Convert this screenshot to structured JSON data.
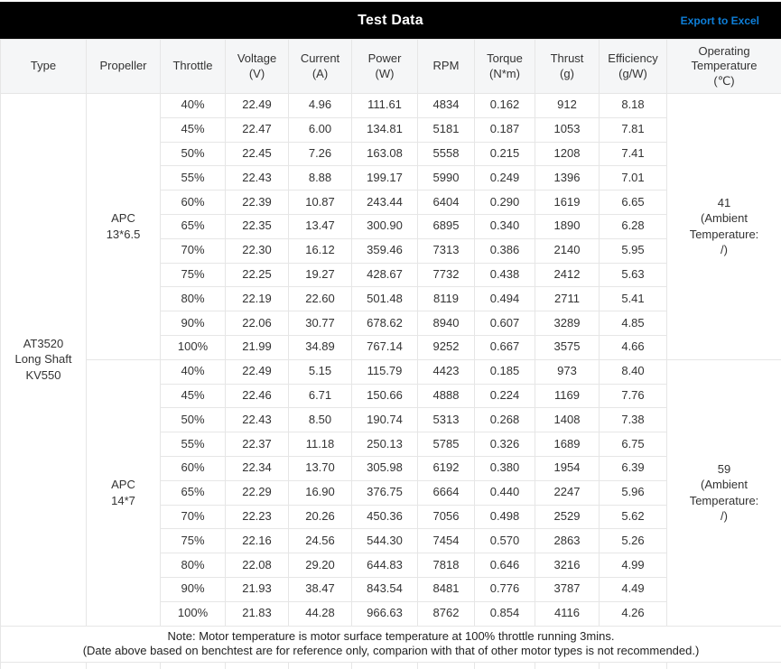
{
  "header": {
    "title": "Test Data",
    "export_label": "Export to Excel"
  },
  "columns": [
    {
      "key": "type",
      "label": "Type",
      "unit": ""
    },
    {
      "key": "propeller",
      "label": "Propeller",
      "unit": ""
    },
    {
      "key": "throttle",
      "label": "Throttle",
      "unit": ""
    },
    {
      "key": "voltage",
      "label": "Voltage",
      "unit": "(V)"
    },
    {
      "key": "current",
      "label": "Current",
      "unit": "(A)"
    },
    {
      "key": "power",
      "label": "Power",
      "unit": "(W)"
    },
    {
      "key": "rpm",
      "label": "RPM",
      "unit": ""
    },
    {
      "key": "torque",
      "label": "Torque",
      "unit": "(N*m)"
    },
    {
      "key": "thrust",
      "label": "Thrust",
      "unit": "(g)"
    },
    {
      "key": "efficiency",
      "label": "Efficiency",
      "unit": "(g/W)"
    },
    {
      "key": "operating-temperature",
      "label": "Operating Temperature",
      "unit": "(℃)"
    }
  ],
  "table": {
    "type_lines": [
      "AT3520",
      "Long Shaft",
      "KV550"
    ],
    "groups": [
      {
        "propeller_lines": [
          "APC",
          "13*6.5"
        ],
        "temperature_lines": [
          "41",
          "(Ambient",
          "Temperature:",
          "/)"
        ],
        "rows": [
          [
            "40%",
            "22.49",
            "4.96",
            "111.61",
            "4834",
            "0.162",
            "912",
            "8.18"
          ],
          [
            "45%",
            "22.47",
            "6.00",
            "134.81",
            "5181",
            "0.187",
            "1053",
            "7.81"
          ],
          [
            "50%",
            "22.45",
            "7.26",
            "163.08",
            "5558",
            "0.215",
            "1208",
            "7.41"
          ],
          [
            "55%",
            "22.43",
            "8.88",
            "199.17",
            "5990",
            "0.249",
            "1396",
            "7.01"
          ],
          [
            "60%",
            "22.39",
            "10.87",
            "243.44",
            "6404",
            "0.290",
            "1619",
            "6.65"
          ],
          [
            "65%",
            "22.35",
            "13.47",
            "300.90",
            "6895",
            "0.340",
            "1890",
            "6.28"
          ],
          [
            "70%",
            "22.30",
            "16.12",
            "359.46",
            "7313",
            "0.386",
            "2140",
            "5.95"
          ],
          [
            "75%",
            "22.25",
            "19.27",
            "428.67",
            "7732",
            "0.438",
            "2412",
            "5.63"
          ],
          [
            "80%",
            "22.19",
            "22.60",
            "501.48",
            "8119",
            "0.494",
            "2711",
            "5.41"
          ],
          [
            "90%",
            "22.06",
            "30.77",
            "678.62",
            "8940",
            "0.607",
            "3289",
            "4.85"
          ],
          [
            "100%",
            "21.99",
            "34.89",
            "767.14",
            "9252",
            "0.667",
            "3575",
            "4.66"
          ]
        ]
      },
      {
        "propeller_lines": [
          "APC",
          "14*7"
        ],
        "temperature_lines": [
          "59",
          "(Ambient",
          "Temperature:",
          "/)"
        ],
        "rows": [
          [
            "40%",
            "22.49",
            "5.15",
            "115.79",
            "4423",
            "0.185",
            "973",
            "8.40"
          ],
          [
            "45%",
            "22.46",
            "6.71",
            "150.66",
            "4888",
            "0.224",
            "1169",
            "7.76"
          ],
          [
            "50%",
            "22.43",
            "8.50",
            "190.74",
            "5313",
            "0.268",
            "1408",
            "7.38"
          ],
          [
            "55%",
            "22.37",
            "11.18",
            "250.13",
            "5785",
            "0.326",
            "1689",
            "6.75"
          ],
          [
            "60%",
            "22.34",
            "13.70",
            "305.98",
            "6192",
            "0.380",
            "1954",
            "6.39"
          ],
          [
            "65%",
            "22.29",
            "16.90",
            "376.75",
            "6664",
            "0.440",
            "2247",
            "5.96"
          ],
          [
            "70%",
            "22.23",
            "20.26",
            "450.36",
            "7056",
            "0.498",
            "2529",
            "5.62"
          ],
          [
            "75%",
            "22.16",
            "24.56",
            "544.30",
            "7454",
            "0.570",
            "2863",
            "5.26"
          ],
          [
            "80%",
            "22.08",
            "29.20",
            "644.83",
            "7818",
            "0.646",
            "3216",
            "4.99"
          ],
          [
            "90%",
            "21.93",
            "38.47",
            "843.54",
            "8481",
            "0.776",
            "3787",
            "4.49"
          ],
          [
            "100%",
            "21.83",
            "44.28",
            "966.63",
            "8762",
            "0.854",
            "4116",
            "4.26"
          ]
        ]
      }
    ]
  },
  "note": {
    "lines": [
      "Note: Motor temperature is motor surface temperature at 100% throttle running 3mins.",
      "(Date above based on benchtest are for reference only, comparion with that of other motor types is not recommended.)"
    ]
  },
  "colors": {
    "title_bar": "#000000",
    "title_text": "#ffffff",
    "accent_blue": "#0e7fd9",
    "header_bg": "#f5f6f7",
    "border": "#e6e6e6",
    "note_bg": "#fbfbfb",
    "text": "#333333"
  }
}
